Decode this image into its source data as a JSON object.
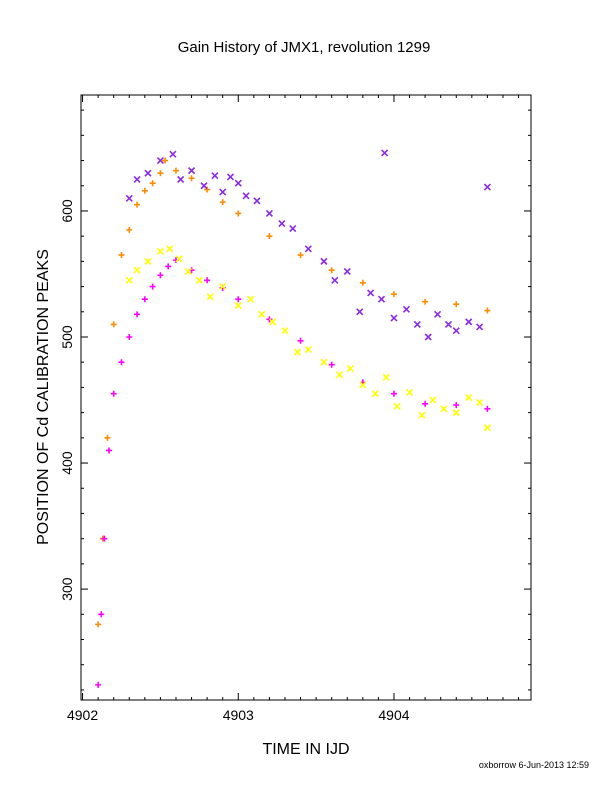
{
  "chart_data": {
    "type": "scatter",
    "title": "Gain History of JMX1, revolution 1299",
    "xlabel": "TIME IN IJD",
    "ylabel": "POSITION OF Cd CALIBRATION PEAKS",
    "xlim": [
      4901.99,
      4904.88
    ],
    "ylim": [
      212,
      692
    ],
    "xticks": [
      4902,
      4903,
      4904
    ],
    "xtick_labels": [
      "4902",
      "4903",
      "4904"
    ],
    "yticks": [
      300,
      400,
      500,
      600
    ],
    "ytick_labels": [
      "300",
      "400",
      "500",
      "600"
    ],
    "grid": false,
    "legend": "none",
    "colors": {
      "orange": "#ff8c00",
      "magenta": "#ff00ff",
      "purple": "#8a2be2",
      "yellow": "#ffff00"
    },
    "series": [
      {
        "marker": "plus",
        "color": "#ff8c00",
        "x": [
          4902.1,
          4902.13,
          4902.16,
          4902.2,
          4902.25,
          4902.3,
          4902.35,
          4902.4,
          4902.45,
          4902.5,
          4902.53,
          4902.6,
          4902.7,
          4902.8,
          4902.9,
          4903.0,
          4903.2,
          4903.4,
          4903.6,
          4903.8,
          4904.0,
          4904.2,
          4904.4,
          4904.6
        ],
        "y": [
          272,
          340,
          420,
          510,
          565,
          585,
          605,
          616,
          622,
          630,
          640,
          632,
          626,
          617,
          607,
          598,
          580,
          565,
          553,
          543,
          534,
          528,
          526,
          521
        ]
      },
      {
        "marker": "plus",
        "color": "#ff00ff",
        "x": [
          4902.1,
          4902.12,
          4902.14,
          4902.17,
          4902.2,
          4902.25,
          4902.3,
          4902.35,
          4902.4,
          4902.45,
          4902.5,
          4902.55,
          4902.6,
          4902.7,
          4902.8,
          4902.9,
          4903.0,
          4903.2,
          4903.4,
          4903.6,
          4903.8,
          4904.0,
          4904.2,
          4904.4,
          4904.6
        ],
        "y": [
          224,
          280,
          340,
          410,
          455,
          480,
          500,
          518,
          530,
          540,
          549,
          556,
          561,
          553,
          545,
          539,
          530,
          514,
          497,
          478,
          464,
          455,
          447,
          446,
          443
        ]
      },
      {
        "marker": "x",
        "color": "#8a2be2",
        "x": [
          4902.3,
          4902.35,
          4902.42,
          4902.5,
          4902.58,
          4902.63,
          4902.7,
          4902.78,
          4902.85,
          4902.9,
          4902.95,
          4903.0,
          4903.05,
          4903.12,
          4903.2,
          4903.28,
          4903.35,
          4903.45,
          4903.55,
          4903.62,
          4903.7,
          4903.78,
          4903.85,
          4903.92,
          4903.94,
          4904.0,
          4904.08,
          4904.15,
          4904.22,
          4904.28,
          4904.35,
          4904.4,
          4904.48,
          4904.55,
          4904.6
        ],
        "y": [
          610,
          625,
          630,
          640,
          645,
          625,
          632,
          620,
          628,
          615,
          627,
          622,
          612,
          608,
          598,
          590,
          586,
          570,
          560,
          545,
          552,
          520,
          535,
          530,
          646,
          515,
          522,
          510,
          500,
          518,
          510,
          505,
          512,
          508,
          619
        ]
      },
      {
        "marker": "x",
        "color": "#ffff00",
        "x": [
          4902.3,
          4902.35,
          4902.42,
          4902.5,
          4902.56,
          4902.62,
          4902.68,
          4902.75,
          4902.82,
          4902.9,
          4903.0,
          4903.08,
          4903.15,
          4903.22,
          4903.3,
          4903.38,
          4903.45,
          4903.55,
          4903.65,
          4903.72,
          4903.8,
          4903.88,
          4903.95,
          4904.02,
          4904.1,
          4904.18,
          4904.25,
          4904.32,
          4904.4,
          4904.48,
          4904.55,
          4904.6
        ],
        "y": [
          545,
          553,
          560,
          568,
          570,
          562,
          552,
          545,
          532,
          540,
          525,
          530,
          518,
          512,
          505,
          488,
          490,
          480,
          470,
          475,
          462,
          455,
          468,
          445,
          456,
          438,
          450,
          443,
          440,
          452,
          448,
          428
        ]
      }
    ]
  },
  "footer": {
    "text": "oxborrow  6-Jun-2013 12:59"
  }
}
